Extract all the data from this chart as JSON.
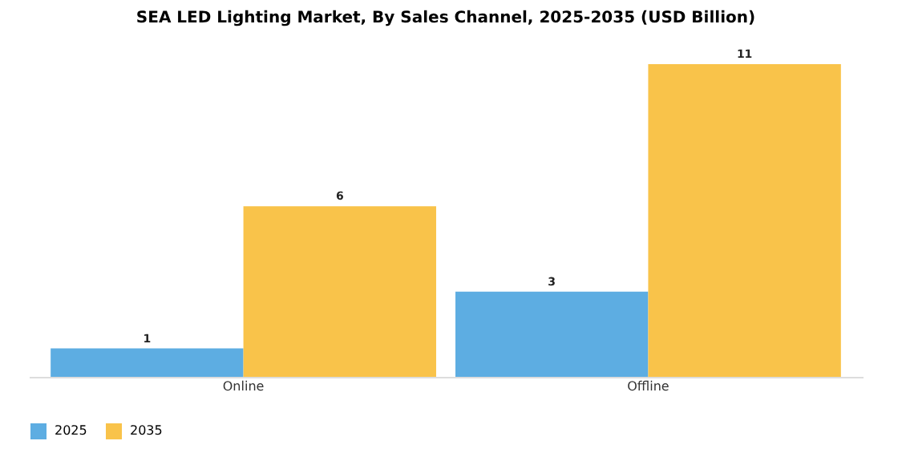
{
  "chart_data": {
    "type": "bar",
    "title": "SEA LED Lighting Market, By Sales Channel, 2025-2035 (USD Billion)",
    "categories": [
      "Online",
      "Offline"
    ],
    "series": [
      {
        "name": "2025",
        "color": "#5dade2",
        "values": [
          1,
          3
        ]
      },
      {
        "name": "2035",
        "color": "#f9c34a",
        "values": [
          6,
          11
        ]
      }
    ],
    "data_labels": true,
    "legend": "bottom"
  }
}
